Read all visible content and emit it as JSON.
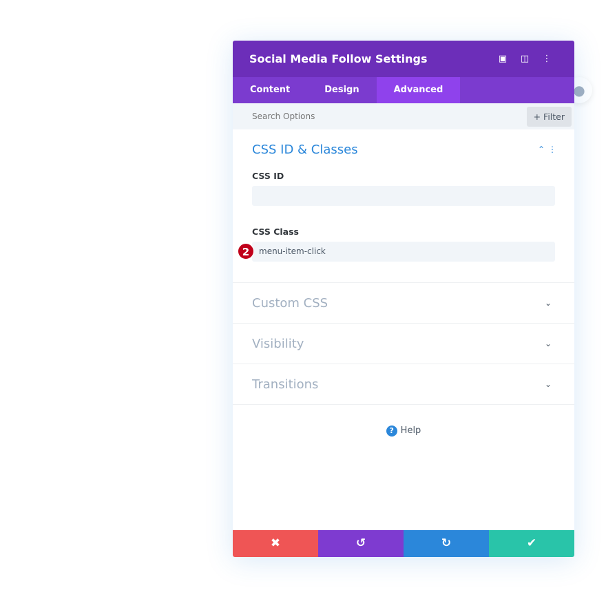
{
  "header": {
    "title": "Social Media Follow Settings",
    "icons": [
      "focus-icon",
      "split-view-icon",
      "more-icon"
    ]
  },
  "tabs": [
    {
      "label": "Content"
    },
    {
      "label": "Design"
    },
    {
      "label": "Advanced",
      "active": true
    }
  ],
  "search": {
    "placeholder": "Search Options",
    "filter_label": "+ Filter"
  },
  "sections": [
    {
      "title": "CSS ID & Classes",
      "open": true,
      "fields": [
        {
          "label": "CSS ID",
          "value": ""
        },
        {
          "label": "CSS Class",
          "value": "menu-item-click",
          "badge": "2"
        }
      ]
    },
    {
      "title": "Custom CSS"
    },
    {
      "title": "Visibility"
    },
    {
      "title": "Transitions"
    }
  ],
  "help": {
    "label": "Help"
  },
  "footer": {
    "colors": {
      "cancel": "#ef5555",
      "undo": "#7e3bd0",
      "redo": "#2b87da",
      "save": "#29c4a9"
    }
  }
}
